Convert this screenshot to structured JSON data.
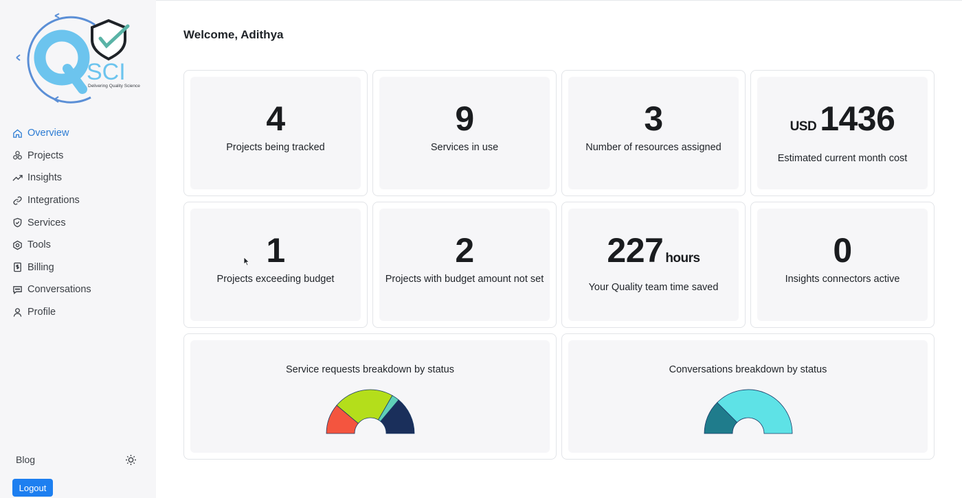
{
  "logo": {
    "letters": "SCI",
    "tagline": "Delivering Quality Science"
  },
  "sidebar": {
    "items": [
      {
        "label": "Overview",
        "icon": "home-icon",
        "active": true
      },
      {
        "label": "Projects",
        "icon": "projects-icon"
      },
      {
        "label": "Insights",
        "icon": "trending-up-icon"
      },
      {
        "label": "Integrations",
        "icon": "link-icon"
      },
      {
        "label": "Services",
        "icon": "shield-icon"
      },
      {
        "label": "Tools",
        "icon": "hexagon-icon"
      },
      {
        "label": "Billing",
        "icon": "receipt-icon"
      },
      {
        "label": "Conversations",
        "icon": "chat-icon"
      },
      {
        "label": "Profile",
        "icon": "user-icon"
      }
    ],
    "blog_label": "Blog",
    "logout_label": "Logout"
  },
  "main": {
    "welcome": "Welcome, Adithya",
    "stats": [
      {
        "value": "4",
        "label": "Projects being tracked"
      },
      {
        "value": "9",
        "label": "Services in use"
      },
      {
        "value": "3",
        "label": "Number of resources assigned"
      },
      {
        "prefix": "USD",
        "value": "1436",
        "label": "Estimated current month cost"
      },
      {
        "value": "1",
        "label": "Projects exceeding budget"
      },
      {
        "value": "2",
        "label": "Projects with budget amount not set"
      },
      {
        "value": "227",
        "suffix": "hours",
        "label": "Your Quality team time saved"
      },
      {
        "value": "0",
        "label": "Insights connectors active"
      }
    ],
    "charts": [
      {
        "title": "Service requests breakdown by status"
      },
      {
        "title": "Conversations breakdown by status"
      }
    ]
  },
  "colors": {
    "accent": "#2b7bd3",
    "logout": "#1d7ff0",
    "card_bg": "#f6f6f8"
  },
  "chart_data": [
    {
      "type": "pie",
      "title": "Service requests breakdown by status",
      "shape": "half-donut",
      "slices": [
        {
          "value": 2,
          "color": "#f4553f"
        },
        {
          "value": 4,
          "color": "#b4de1b"
        },
        {
          "value": 0.5,
          "color": "#5fd0b8"
        },
        {
          "value": 2.5,
          "color": "#1a2f5b"
        }
      ]
    },
    {
      "type": "pie",
      "title": "Conversations breakdown by status",
      "shape": "half-donut",
      "slices": [
        {
          "value": 1,
          "color": "#1f7c8c"
        },
        {
          "value": 3,
          "color": "#5ee2e6"
        }
      ]
    }
  ]
}
